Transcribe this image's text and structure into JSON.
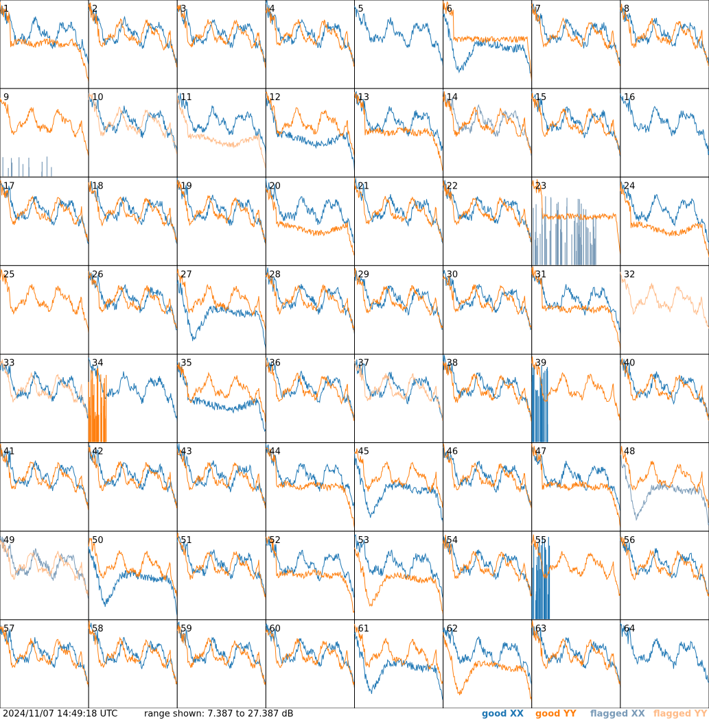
{
  "chart_data": {
    "type": "line",
    "panel_labels": [
      "1",
      "2",
      "3",
      "4",
      "5",
      "6",
      "7",
      "8",
      "9",
      "10",
      "11",
      "12",
      "13",
      "14",
      "15",
      "16",
      "17",
      "18",
      "19",
      "20",
      "21",
      "22",
      "23",
      "24",
      "25",
      "26",
      "27",
      "28",
      "29",
      "30",
      "31",
      "32",
      "33",
      "34",
      "35",
      "36",
      "37",
      "38",
      "39",
      "40",
      "41",
      "42",
      "43",
      "44",
      "45",
      "46",
      "47",
      "48",
      "49",
      "50",
      "51",
      "52",
      "53",
      "54",
      "55",
      "56",
      "57",
      "58",
      "59",
      "60",
      "61",
      "62",
      "63",
      "64"
    ],
    "ylim": [
      7.387,
      27.387
    ],
    "series": [
      {
        "name": "good XX",
        "color": "#1f77b4"
      },
      {
        "name": "good YY",
        "color": "#ff7f0e"
      },
      {
        "name": "flagged XX",
        "color": "#7a9bb8"
      },
      {
        "name": "flagged YY",
        "color": "#ffbb88"
      }
    ],
    "panels": {
      "1": {
        "xx": "good",
        "yy": "good",
        "yy_shape": "roll"
      },
      "5": {
        "xx": "good",
        "yy": "absent"
      },
      "6": {
        "xx": "good",
        "yy": "good",
        "xx_shape": "dip",
        "yy_shape": "plateau"
      },
      "9": {
        "xx": "flagged_spikes",
        "yy": "good"
      },
      "10": {
        "xx": "good",
        "yy": "flagged"
      },
      "11": {
        "xx": "good",
        "yy": "flagged",
        "yy_shape": "low"
      },
      "12": {
        "xx": "good",
        "yy": "good",
        "xx_shape": "low"
      },
      "13": {
        "xx": "good",
        "yy": "good",
        "yy_shape": "roll"
      },
      "14": {
        "xx": "flagged",
        "yy": "good"
      },
      "16": {
        "xx": "good",
        "yy": "absent"
      },
      "20": {
        "xx": "good",
        "yy": "good",
        "yy_shape": "low"
      },
      "23": {
        "xx": "flagged_noise",
        "yy": "good",
        "yy_shape": "plateau"
      },
      "24": {
        "xx": "good",
        "yy": "good",
        "yy_shape": "low"
      },
      "25": {
        "xx": "absent",
        "yy": "good"
      },
      "27": {
        "xx": "good",
        "yy": "good",
        "xx_shape": "dip"
      },
      "31": {
        "xx": "good",
        "yy": "good",
        "yy_shape": "roll"
      },
      "32": {
        "xx": "absent",
        "yy": "flagged"
      },
      "33": {
        "xx": "good",
        "yy": "flagged"
      },
      "34": {
        "xx": "good",
        "yy": "spikes"
      },
      "35": {
        "xx": "good",
        "yy": "good",
        "xx_shape": "low"
      },
      "37": {
        "xx": "good",
        "yy": "flagged"
      },
      "39": {
        "xx": "spikes",
        "yy": "good"
      },
      "44": {
        "xx": "good",
        "yy": "good",
        "yy_shape": "roll"
      },
      "45": {
        "xx": "good",
        "yy": "good",
        "xx_shape": "dip"
      },
      "47": {
        "xx": "good",
        "yy": "good",
        "yy_shape": "roll"
      },
      "48": {
        "xx": "flagged",
        "yy": "good",
        "xx_shape": "dip"
      },
      "49": {
        "xx": "flagged",
        "yy": "flagged"
      },
      "50": {
        "xx": "good",
        "yy": "good",
        "xx_shape": "dip"
      },
      "52": {
        "xx": "good",
        "yy": "good",
        "yy_shape": "roll"
      },
      "53": {
        "xx": "good",
        "yy": "good",
        "yy_shape": "dip"
      },
      "55": {
        "xx": "spikes",
        "yy": "good"
      },
      "61": {
        "xx": "good",
        "yy": "good",
        "xx_shape": "dip"
      },
      "62": {
        "xx": "good",
        "yy": "good",
        "yy_shape": "dip"
      },
      "64": {
        "xx": "good",
        "yy": "absent"
      }
    }
  },
  "footer": {
    "timestamp": "2024/11/07 14:49:18 UTC",
    "range_text": "range shown: 7.387 to 27.387 dB",
    "legend_good_xx": "good XX",
    "legend_good_yy": "good YY",
    "legend_flagged_xx": "flagged XX",
    "legend_flagged_yy": "flagged YY"
  }
}
